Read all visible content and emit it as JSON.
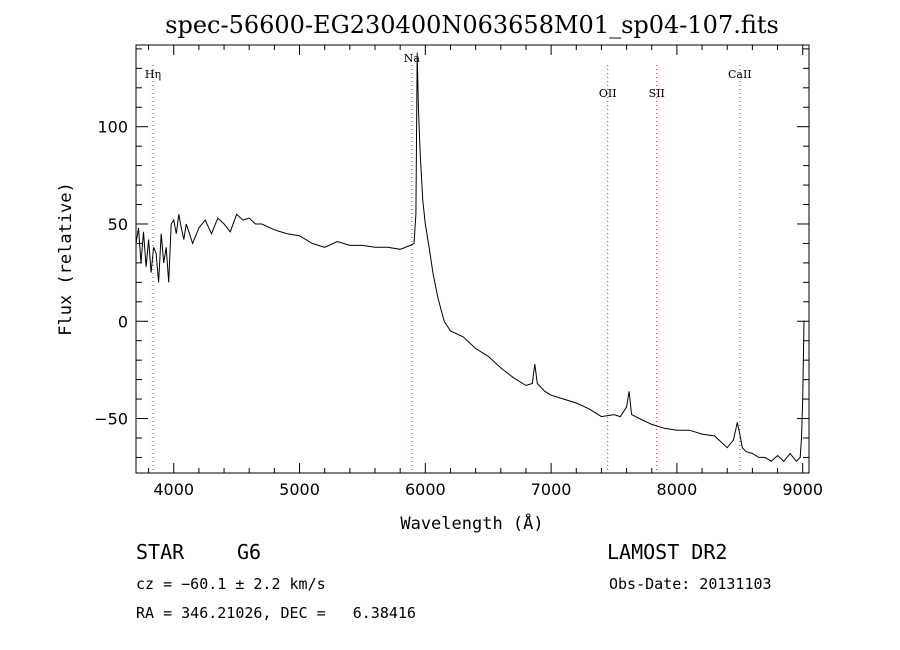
{
  "chart_data": {
    "type": "line",
    "title": "spec-56600-EG230400N063658M01_sp04-107.fits",
    "xlabel": "Wavelength (Å)",
    "ylabel": "Flux (relative)",
    "xlim": [
      3700,
      9050
    ],
    "ylim": [
      -78,
      142
    ],
    "xticks": [
      "4000",
      "5000",
      "6000",
      "7000",
      "8000",
      "9000"
    ],
    "xtick_values": [
      4000,
      5000,
      6000,
      7000,
      8000,
      9000
    ],
    "yticks": [
      "−50",
      "0",
      "50",
      "100"
    ],
    "ytick_values": [
      -50,
      0,
      50,
      100
    ],
    "grid": false,
    "line_color": "#000000",
    "marker_color": "#d02020",
    "lines": [
      {
        "label": "Hη",
        "x": 3835
      },
      {
        "label": "Na",
        "x": 5893
      },
      {
        "label": "OII",
        "x": 7450
      },
      {
        "label": "SII",
        "x": 7840
      },
      {
        "label": "CaII",
        "x": 8500
      }
    ],
    "series": [
      {
        "x": [
          3700,
          3720,
          3740,
          3760,
          3780,
          3800,
          3820,
          3840,
          3860,
          3880,
          3900,
          3920,
          3940,
          3960,
          3980,
          4000,
          4020,
          4040,
          4060,
          4080,
          4100,
          4150,
          4200,
          4250,
          4300,
          4350,
          4400,
          4450,
          4500,
          4550,
          4600,
          4650,
          4700,
          4800,
          4900,
          5000,
          5100,
          5200,
          5300,
          5400,
          5500,
          5600,
          5700,
          5800,
          5880,
          5910,
          5925,
          5935,
          5945,
          5960,
          5980,
          6000,
          6030,
          6060,
          6100,
          6150,
          6200,
          6300,
          6400,
          6500,
          6600,
          6700,
          6800,
          6850,
          6870,
          6890,
          6950,
          7000,
          7100,
          7200,
          7300,
          7400,
          7500,
          7550,
          7600,
          7620,
          7640,
          7700,
          7800,
          7900,
          8000,
          8100,
          8200,
          8300,
          8350,
          8400,
          8450,
          8480,
          8500,
          8520,
          8550,
          8600,
          8650,
          8700,
          8750,
          8800,
          8850,
          8900,
          8950,
          8980,
          8990,
          9000,
          9010,
          9020
        ],
        "y": [
          40,
          48,
          30,
          46,
          28,
          42,
          25,
          38,
          35,
          20,
          45,
          30,
          38,
          20,
          50,
          52,
          45,
          55,
          48,
          42,
          50,
          40,
          48,
          52,
          45,
          53,
          50,
          46,
          55,
          52,
          53,
          50,
          50,
          47,
          45,
          44,
          40,
          38,
          41,
          39,
          39,
          38,
          38,
          37,
          39,
          40,
          55,
          138,
          110,
          85,
          62,
          50,
          38,
          25,
          12,
          0,
          -5,
          -8,
          -14,
          -18,
          -24,
          -29,
          -33,
          -32,
          -22,
          -32,
          -36,
          -38,
          -40,
          -42,
          -45,
          -49,
          -48,
          -49,
          -44,
          -36,
          -48,
          -50,
          -53,
          -55,
          -56,
          -56,
          -58,
          -59,
          -62,
          -65,
          -61,
          -52,
          -58,
          -65,
          -67,
          -68,
          -70,
          -70,
          -72,
          -69,
          -72,
          -68,
          -72,
          -70,
          -60,
          -40,
          0,
          0
        ]
      }
    ]
  },
  "info": {
    "object_type": "STAR",
    "subclass": "G6",
    "survey": "LAMOST DR2",
    "cz": "cz = −60.1 ± 2.2 km/s",
    "obs_date": "Obs-Date: 20131103",
    "coords": "RA = 346.21026, DEC =   6.38416"
  }
}
